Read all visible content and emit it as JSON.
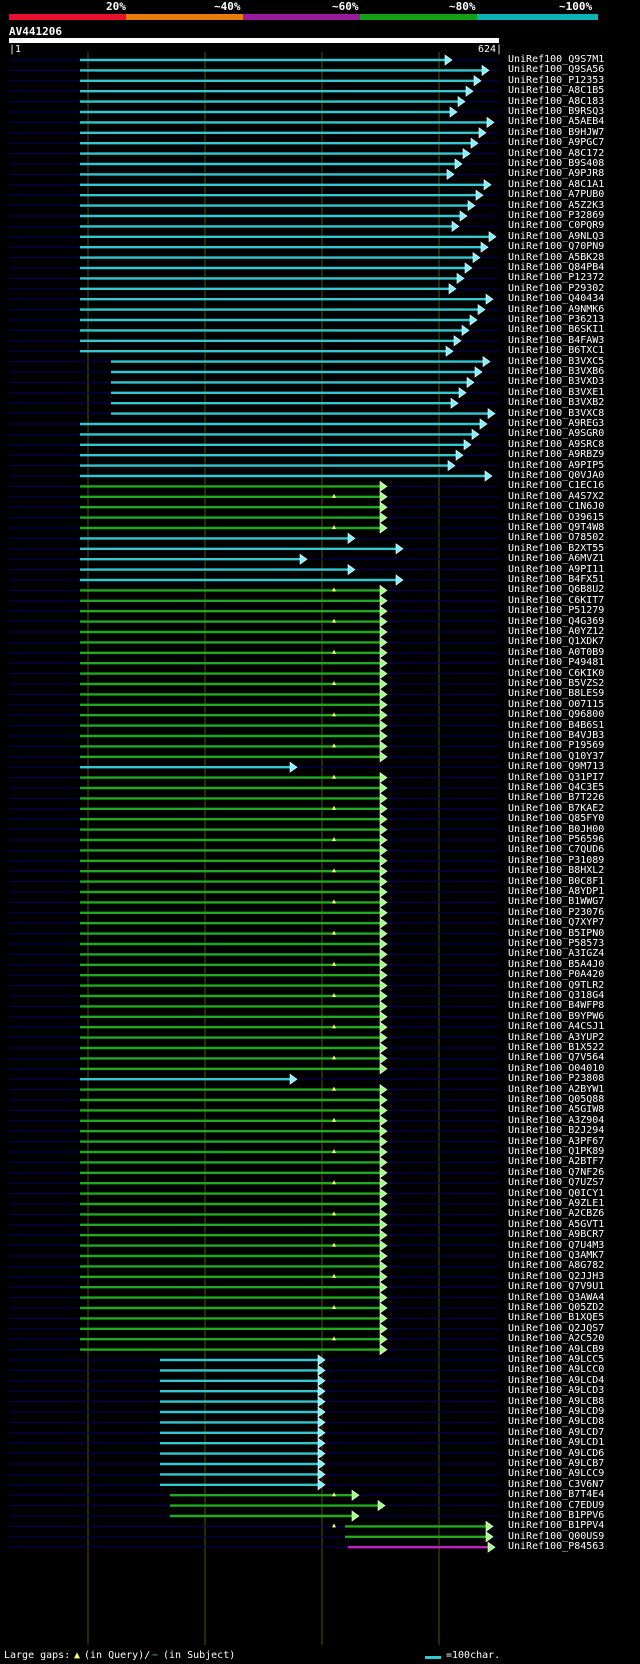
{
  "header": {
    "ticks": [
      "20%",
      "~40%",
      "~60%",
      "~80%",
      "~100%"
    ],
    "bands": [
      "#e8102c",
      "#e87c0c",
      "#9a1b9a",
      "#14a014",
      "#0ab4b4"
    ],
    "query": "AV441206",
    "ruler_start": "|1",
    "ruler_end": "624|"
  },
  "hits": [
    "UniRef100_Q9S7M1",
    "UniRef100_Q9SA56",
    "UniRef100_P12353",
    "UniRef100_A8C1B5",
    "UniRef100_A8C183",
    "UniRef100_B9RSQ3",
    "UniRef100_A5AEB4",
    "UniRef100_B9HJW7",
    "UniRef100_A9PGC7",
    "UniRef100_A8C172",
    "UniRef100_B9S408",
    "UniRef100_A9PJR8",
    "UniRef100_A8C1A1",
    "UniRef100_A7PUB0",
    "UniRef100_A5Z2K3",
    "UniRef100_P32869",
    "UniRef100_C0PQR9",
    "UniRef100_A9NLQ3",
    "UniRef100_Q70PN9",
    "UniRef100_A5BK28",
    "UniRef100_Q84PB4",
    "UniRef100_P12372",
    "UniRef100_P29302",
    "UniRef100_Q40434",
    "UniRef100_A9NMK6",
    "UniRef100_P36213",
    "UniRef100_B6SKI1",
    "UniRef100_B4FAW3",
    "UniRef100_B6TXC1",
    "UniRef100_B3VXC5",
    "UniRef100_B3VXB6",
    "UniRef100_B3VXD3",
    "UniRef100_B3VXE1",
    "UniRef100_B3VXB2",
    "UniRef100_B3VXC8",
    "UniRef100_A9REG3",
    "UniRef100_A9SGR0",
    "UniRef100_A9SRC8",
    "UniRef100_A9RBZ9",
    "UniRef100_A9PIP5",
    "UniRef100_Q0VJA0",
    "UniRef100_C1EC16",
    "UniRef100_A4S7X2",
    "UniRef100_C1N6J0",
    "UniRef100_O39615",
    "UniRef100_Q9T4W8",
    "UniRef100_O78502",
    "UniRef100_B2XT55",
    "UniRef100_A6MVZ1",
    "UniRef100_A9PI11",
    "UniRef100_B4FX51",
    "UniRef100_Q6B8U2",
    "UniRef100_C6KIT7",
    "UniRef100_P51279",
    "UniRef100_Q4G369",
    "UniRef100_A0YZ12",
    "UniRef100_Q1XDK7",
    "UniRef100_A0T0B9",
    "UniRef100_P49481",
    "UniRef100_C6KIK0",
    "UniRef100_B5VZS2",
    "UniRef100_B8LES9",
    "UniRef100_O07115",
    "UniRef100_Q96800",
    "UniRef100_B4B6S1",
    "UniRef100_B4VJB3",
    "UniRef100_P19569",
    "UniRef100_Q10Y37",
    "UniRef100_Q9M713",
    "UniRef100_Q31PI7",
    "UniRef100_Q4C3E5",
    "UniRef100_B7T226",
    "UniRef100_B7KAE2",
    "UniRef100_Q85FY0",
    "UniRef100_B0JH00",
    "UniRef100_P56596",
    "UniRef100_C7QUD6",
    "UniRef100_P31089",
    "UniRef100_B8HXL2",
    "UniRef100_B0C8F1",
    "UniRef100_A8YDP1",
    "UniRef100_B1WWG7",
    "UniRef100_P23076",
    "UniRef100_Q7XYP7",
    "UniRef100_B5IPN0",
    "UniRef100_P58573",
    "UniRef100_A3IGZ4",
    "UniRef100_B5A4J0",
    "UniRef100_P0A420",
    "UniRef100_Q9TLR2",
    "UniRef100_Q318G4",
    "UniRef100_B4WFP8",
    "UniRef100_B9YPW6",
    "UniRef100_A4CSJ1",
    "UniRef100_A3YUP2",
    "UniRef100_B1X522",
    "UniRef100_Q7V564",
    "UniRef100_O04010",
    "UniRef100_P23808",
    "UniRef100_A2BYW1",
    "UniRef100_Q05Q88",
    "UniRef100_A5GIW8",
    "UniRef100_A3Z904",
    "UniRef100_B2J294",
    "UniRef100_A3PF67",
    "UniRef100_Q1PK89",
    "UniRef100_A2BTF7",
    "UniRef100_Q7NF26",
    "UniRef100_Q7UZS7",
    "UniRef100_Q0ICY1",
    "UniRef100_A9ZLE1",
    "UniRef100_A2CBZ6",
    "UniRef100_A5GVT1",
    "UniRef100_A9BCR7",
    "UniRef100_Q7U4M3",
    "UniRef100_Q3AMK7",
    "UniRef100_A8G782",
    "UniRef100_Q2JJH3",
    "UniRef100_Q7V9U1",
    "UniRef100_Q3AWA4",
    "UniRef100_Q05ZD2",
    "UniRef100_B1XQE5",
    "UniRef100_Q2JQS7",
    "UniRef100_A2C520",
    "UniRef100_A9LCB9",
    "UniRef100_A9LCC5",
    "UniRef100_A9LCC0",
    "UniRef100_A9LCD4",
    "UniRef100_A9LCD3",
    "UniRef100_A9LCB8",
    "UniRef100_A9LCD9",
    "UniRef100_A9LCD8",
    "UniRef100_A9LCD7",
    "UniRef100_A9LCD1",
    "UniRef100_A9LCD6",
    "UniRef100_A9LCB7",
    "UniRef100_A9LCC9",
    "UniRef100_C3V6N7",
    "UniRef100_B7T4E4",
    "UniRef100_C7EDU9",
    "UniRef100_B1PPV6",
    "UniRef100_B1PPV4",
    "UniRef100_Q00US9",
    "UniRef100_P84563"
  ],
  "legend": {
    "large_gaps": "Large gaps:",
    "in_query": "(in Query)/",
    "in_subject": "(in Subject)",
    "scale": "=100char."
  }
}
